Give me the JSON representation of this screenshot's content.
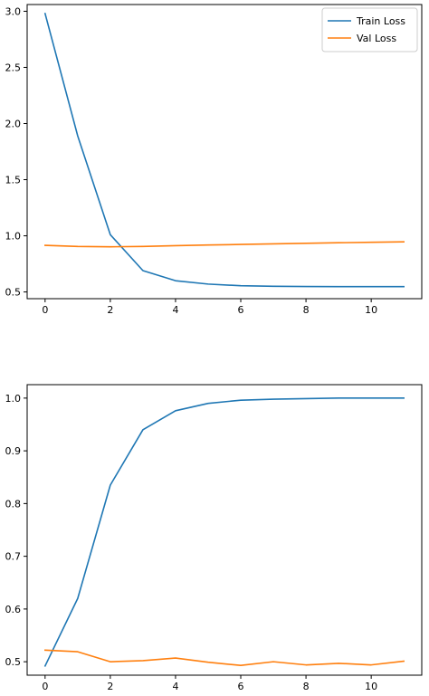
{
  "chart_data": [
    {
      "type": "line",
      "title": "",
      "xlabel": "",
      "ylabel": "",
      "xlim": [
        -0.55,
        11.55
      ],
      "ylim": [
        0.44,
        3.06
      ],
      "xticks": [
        0,
        2,
        4,
        6,
        8,
        10
      ],
      "yticks": [
        0.5,
        1.0,
        1.5,
        2.0,
        2.5,
        3.0
      ],
      "ytick_labels": [
        "0.5",
        "1.0",
        "1.5",
        "2.0",
        "2.5",
        "3.0"
      ],
      "grid": false,
      "legend": "top-right",
      "x": [
        0,
        1,
        2,
        3,
        4,
        5,
        6,
        7,
        8,
        9,
        10,
        11
      ],
      "series": [
        {
          "name": "Train Loss",
          "color": "#1f77b4",
          "values": [
            2.98,
            1.89,
            1.01,
            0.69,
            0.6,
            0.57,
            0.555,
            0.55,
            0.548,
            0.547,
            0.547,
            0.547
          ]
        },
        {
          "name": "Val Loss",
          "color": "#ff7f0e",
          "values": [
            0.915,
            0.905,
            0.902,
            0.905,
            0.912,
            0.918,
            0.923,
            0.928,
            0.933,
            0.938,
            0.942,
            0.946
          ]
        }
      ]
    },
    {
      "type": "line",
      "title": "",
      "xlabel": "",
      "ylabel": "",
      "xlim": [
        -0.55,
        11.55
      ],
      "ylim": [
        0.4745,
        1.0255
      ],
      "xticks": [
        0,
        2,
        4,
        6,
        8,
        10
      ],
      "yticks": [
        0.5,
        0.6,
        0.7,
        0.8,
        0.9,
        1.0
      ],
      "ytick_labels": [
        "0.5",
        "0.6",
        "0.7",
        "0.8",
        "0.9",
        "1.0"
      ],
      "grid": false,
      "legend": "none",
      "x": [
        0,
        1,
        2,
        3,
        4,
        5,
        6,
        7,
        8,
        9,
        10,
        11
      ],
      "series": [
        {
          "color": "#1f77b4",
          "values": [
            0.492,
            0.62,
            0.835,
            0.94,
            0.976,
            0.99,
            0.996,
            0.998,
            0.999,
            1.0,
            1.0,
            1.0
          ]
        },
        {
          "color": "#ff7f0e",
          "values": [
            0.522,
            0.519,
            0.5,
            0.502,
            0.507,
            0.499,
            0.493,
            0.5,
            0.494,
            0.497,
            0.494,
            0.501
          ]
        }
      ]
    }
  ]
}
